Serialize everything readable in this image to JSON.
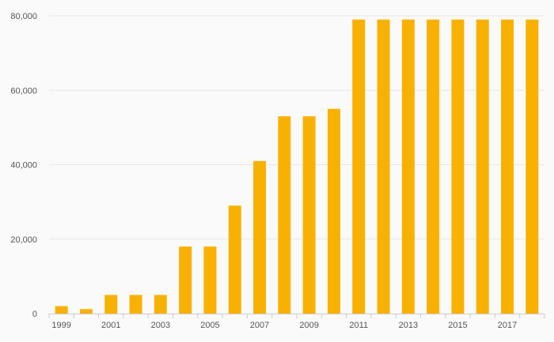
{
  "chart_data": {
    "type": "bar",
    "categories": [
      "1999",
      "2000",
      "2001",
      "2002",
      "2003",
      "2004",
      "2005",
      "2006",
      "2007",
      "2008",
      "2009",
      "2010",
      "2011",
      "2012",
      "2013",
      "2014",
      "2015",
      "2016",
      "2017",
      "2018"
    ],
    "x_tick_labels": [
      "1999",
      "2001",
      "2003",
      "2005",
      "2007",
      "2009",
      "2011",
      "2013",
      "2015",
      "2017"
    ],
    "series": [
      {
        "values": [
          2000,
          1200,
          5000,
          5000,
          5000,
          18000,
          18000,
          29000,
          41000,
          53000,
          53000,
          55000,
          79000,
          79000,
          79000,
          79000,
          79000,
          79000,
          79000,
          79000
        ]
      }
    ],
    "y_ticks": [
      0,
      20000,
      40000,
      60000,
      80000
    ],
    "y_tick_labels": [
      "0",
      "20,000",
      "40,000",
      "60,000",
      "80,000"
    ],
    "ylim": [
      0,
      80000
    ],
    "title": "",
    "xlabel": "",
    "ylabel": "",
    "grid": true,
    "legend": "none",
    "colors": {
      "bar": "#f9b100",
      "grid": "#e6e6e6",
      "axis": "#cccccc",
      "text": "#555555",
      "background": "#fafafa"
    }
  }
}
